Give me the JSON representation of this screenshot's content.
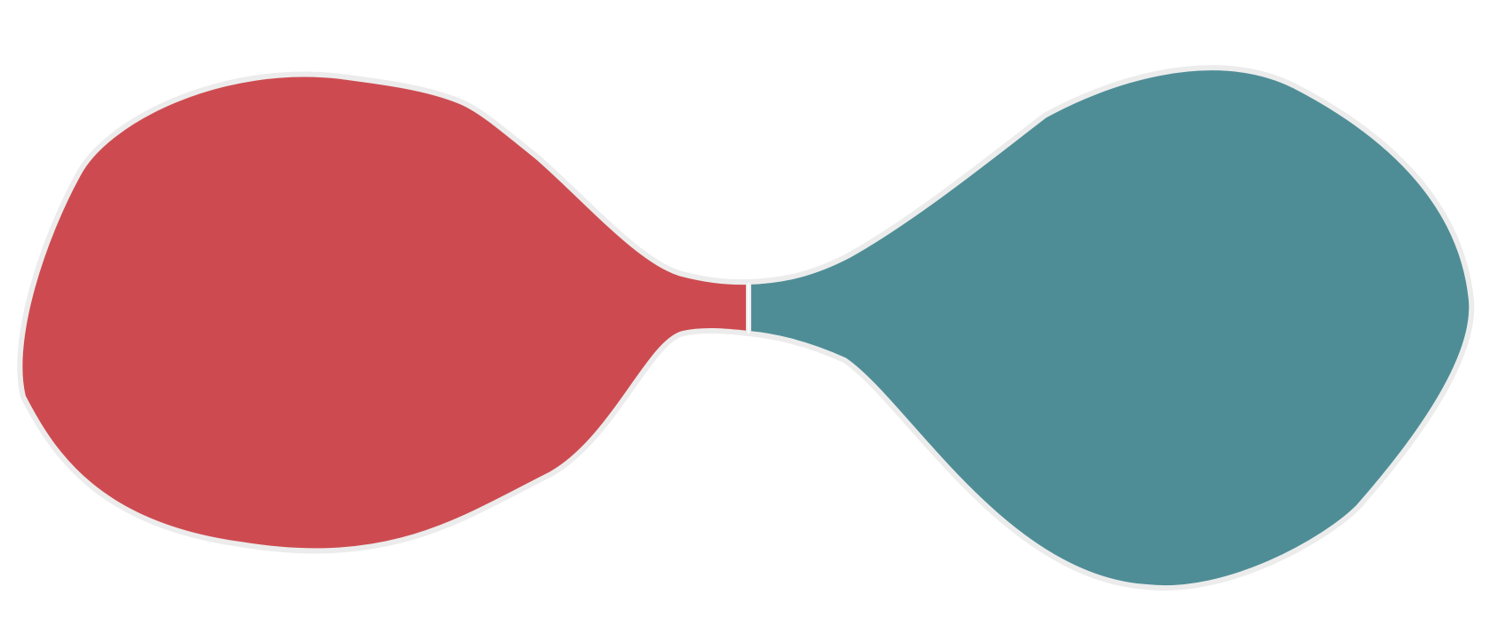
{
  "shapes": {
    "left_blob": {
      "color": "#cd4b50"
    },
    "right_blob": {
      "color": "#4e8d96"
    },
    "outline_color": "#ececec",
    "divider_color": "#ffffff"
  }
}
